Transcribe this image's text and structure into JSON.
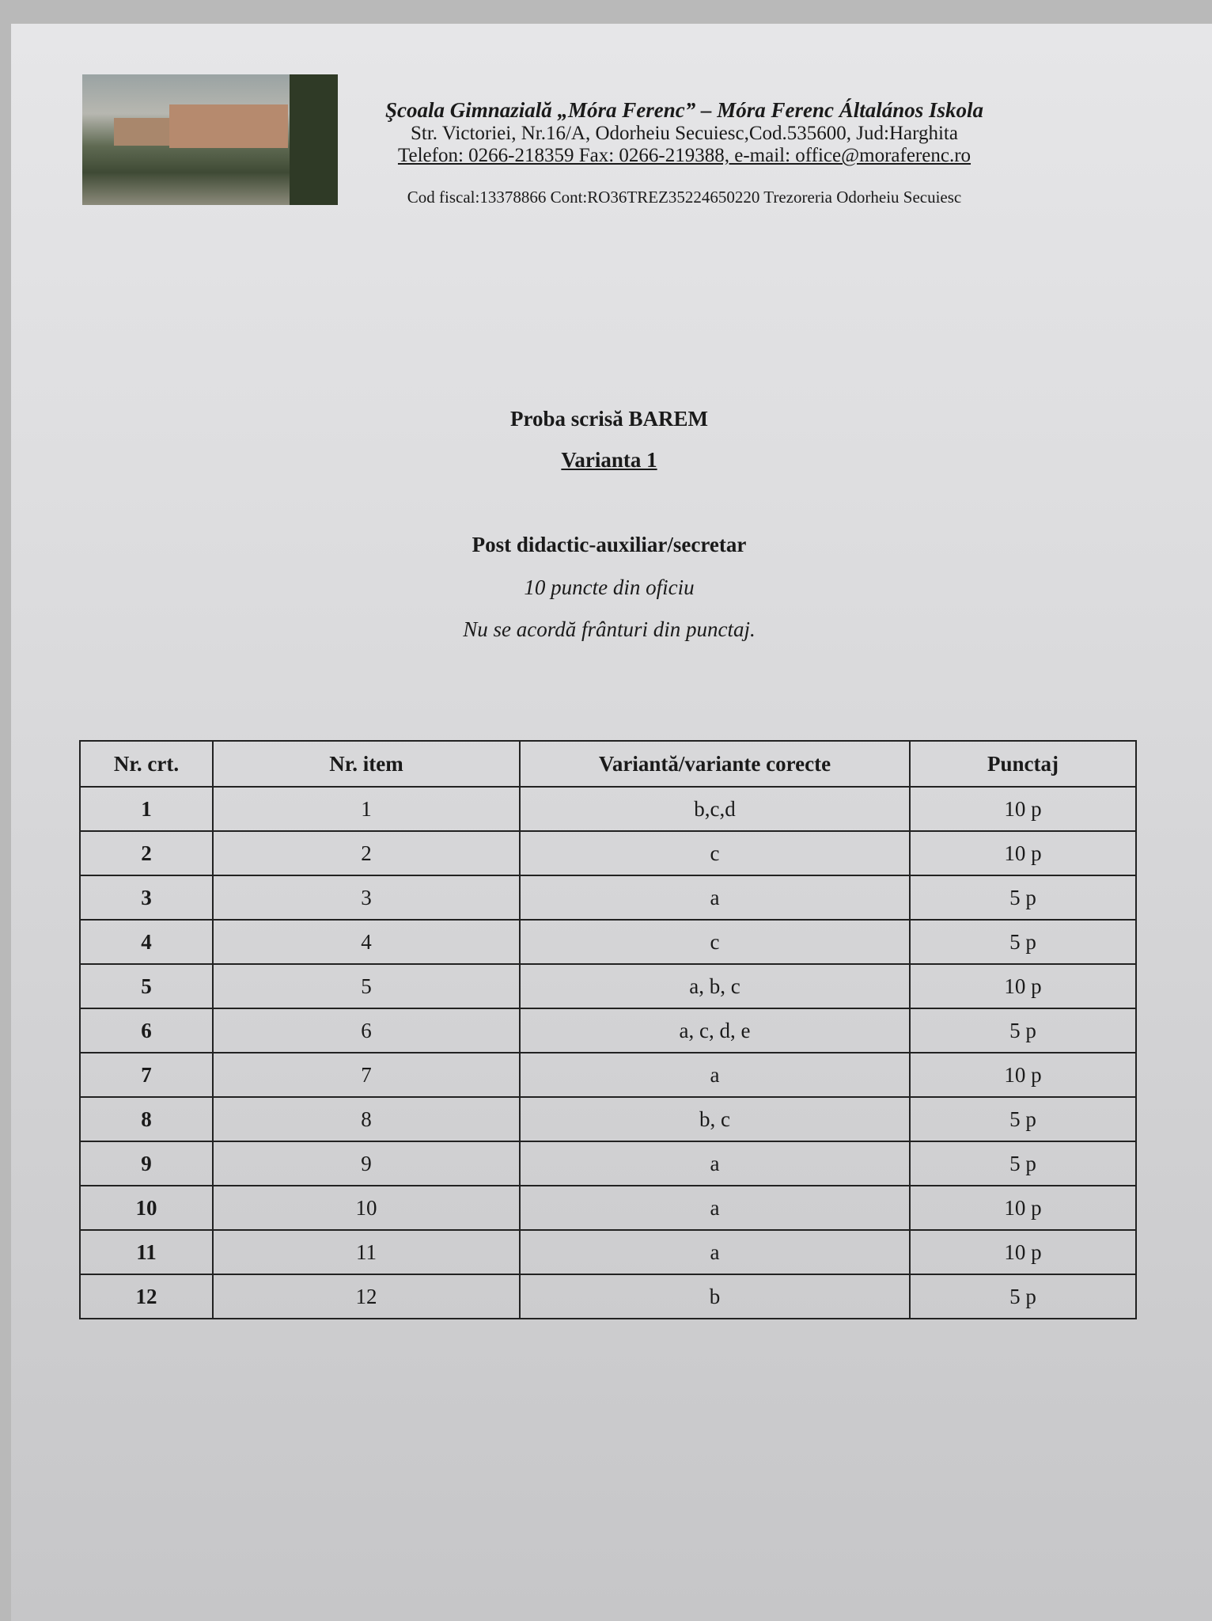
{
  "header": {
    "school_name": "Şcoala Gimnazială „Móra Ferenc” – Móra Ferenc Általános Iskola",
    "address": "Str. Victoriei, Nr.16/A, Odorheiu Secuiesc,Cod.535600, Jud:Harghita",
    "contact": "Telefon: 0266-218359 Fax: 0266-219388, e-mail: office@moraferenc.ro",
    "fiscal": "Cod fiscal:13378866  Cont:RO36TREZ35224650220 Trezoreria Odorheiu Secuiesc"
  },
  "title": {
    "line1": "Proba scrisă BAREM",
    "line2": "Varianta 1",
    "line3": "Post didactic-auxiliar/secretar",
    "line4": "10  puncte din oficiu",
    "line5": "Nu se acordă frânturi din punctaj."
  },
  "table": {
    "headers": [
      "Nr. crt.",
      "Nr. item",
      "Variantă/variante corecte",
      "Punctaj"
    ],
    "rows": [
      [
        "1",
        "1",
        "b,c,d",
        "10 p"
      ],
      [
        "2",
        "2",
        "c",
        "10 p"
      ],
      [
        "3",
        "3",
        "a",
        "5 p"
      ],
      [
        "4",
        "4",
        "c",
        "5 p"
      ],
      [
        "5",
        "5",
        "a, b, c",
        "10 p"
      ],
      [
        "6",
        "6",
        "a, c, d, e",
        "5 p"
      ],
      [
        "7",
        "7",
        "a",
        "10 p"
      ],
      [
        "8",
        "8",
        "b, c",
        "5 p"
      ],
      [
        "9",
        "9",
        "a",
        "5 p"
      ],
      [
        "10",
        "10",
        "a",
        "10 p"
      ],
      [
        "11",
        "11",
        "a",
        "10 p"
      ],
      [
        "12",
        "12",
        "b",
        "5 p"
      ]
    ]
  }
}
